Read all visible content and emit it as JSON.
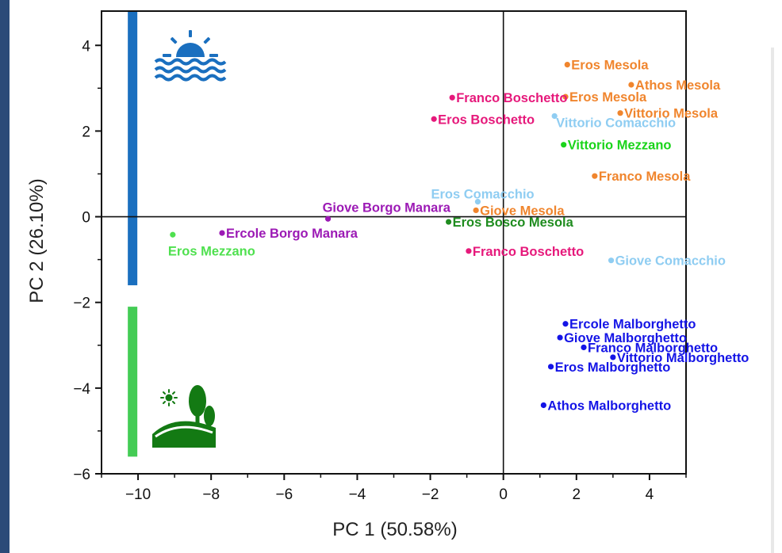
{
  "chart_data": {
    "type": "scatter",
    "title": "",
    "xlabel": "PC 1 (50.58%)",
    "ylabel": "PC 2 (26.10%)",
    "xlim": [
      -11,
      5
    ],
    "ylim": [
      -6,
      4.8
    ],
    "xticks": [
      -10,
      -8,
      -6,
      -4,
      -2,
      0,
      2,
      4
    ],
    "yticks": [
      -6,
      -4,
      -2,
      0,
      2,
      4
    ],
    "xtick_labels": [
      "−10",
      "−8",
      "−6",
      "−4",
      "−2",
      "0",
      "2",
      "4"
    ],
    "ytick_labels": [
      "−6",
      "−4",
      "−2",
      "0",
      "2",
      "4"
    ],
    "grid": false,
    "colors": {
      "orange": "#f0852d",
      "pink": "#e6197b",
      "lightblue": "#8fcdf2",
      "green": "#1ad41a",
      "purple": "#9c1ab5",
      "darkgreen": "#1f8c1f",
      "blue": "#1414e6",
      "lightgreen": "#4fe04f",
      "sea_band": "#1a6fbf",
      "land_band": "#44cc55",
      "sea_icon": "#1a6fbf",
      "land_icon": "#137a13"
    },
    "bands": [
      {
        "name": "sea",
        "color": "sea_band",
        "y": [
          -1.6,
          4.8
        ]
      },
      {
        "name": "land",
        "color": "land_band",
        "y": [
          -5.6,
          -2.1
        ]
      }
    ],
    "icons": [
      "sunset-sea-icon",
      "countryside-hills-icon"
    ],
    "points": [
      {
        "label": "Eros Mesola",
        "x": 1.75,
        "y": 3.55,
        "color": "orange",
        "label_pos": "right"
      },
      {
        "label": "Athos Mesola",
        "x": 3.5,
        "y": 3.08,
        "color": "orange",
        "label_pos": "right"
      },
      {
        "label": "Eros Mesola",
        "x": 1.7,
        "y": 2.8,
        "color": "orange",
        "label_pos": "right"
      },
      {
        "label": "Vittorio Mesola",
        "x": 3.2,
        "y": 2.42,
        "color": "orange",
        "label_pos": "right"
      },
      {
        "label": "Franco Mesola",
        "x": 2.5,
        "y": 0.95,
        "color": "orange",
        "label_pos": "right"
      },
      {
        "label": "Giove Mesola",
        "x": -0.75,
        "y": 0.15,
        "color": "orange",
        "label_pos": "right"
      },
      {
        "label": "Franco Boschetto",
        "x": -1.4,
        "y": 2.78,
        "color": "pink",
        "label_pos": "right"
      },
      {
        "label": "Eros Boschetto",
        "x": -1.9,
        "y": 2.28,
        "color": "pink",
        "label_pos": "right"
      },
      {
        "label": "Franco Boschetto",
        "x": -0.95,
        "y": -0.8,
        "color": "pink",
        "label_pos": "right"
      },
      {
        "label": "Vittorio Comacchio",
        "x": 1.4,
        "y": 2.35,
        "color": "lightblue",
        "label_pos": "right_below"
      },
      {
        "label": "Eros Comacchio",
        "x": -0.7,
        "y": 0.35,
        "color": "lightblue",
        "label_pos": "left_above"
      },
      {
        "label": "Giove Comacchio",
        "x": 2.95,
        "y": -1.02,
        "color": "lightblue",
        "label_pos": "right"
      },
      {
        "label": "Vittorio Mezzano",
        "x": 1.65,
        "y": 1.68,
        "color": "green",
        "label_pos": "right"
      },
      {
        "label": "Eros Mezzano",
        "x": -9.05,
        "y": -0.42,
        "color": "lightgreen",
        "label_pos": "below"
      },
      {
        "label": "Giove Borgo Manara",
        "x": -4.8,
        "y": -0.05,
        "color": "purple",
        "label_pos": "above_right"
      },
      {
        "label": "Ercole Borgo Manara",
        "x": -7.7,
        "y": -0.38,
        "color": "purple",
        "label_pos": "right"
      },
      {
        "label": "Eros Bosco Mesola",
        "x": -1.5,
        "y": -0.12,
        "color": "darkgreen",
        "label_pos": "right"
      },
      {
        "label": "Ercole Malborghetto",
        "x": 1.7,
        "y": -2.5,
        "color": "blue",
        "label_pos": "right"
      },
      {
        "label": "Giove Malborghetto",
        "x": 1.55,
        "y": -2.82,
        "color": "blue",
        "label_pos": "right"
      },
      {
        "label": "Franco Malborghetto",
        "x": 2.2,
        "y": -3.05,
        "color": "blue",
        "label_pos": "right"
      },
      {
        "label": "Vittorio Malborghetto",
        "x": 3.0,
        "y": -3.28,
        "color": "blue",
        "label_pos": "right"
      },
      {
        "label": "Eros Malborghetto",
        "x": 1.3,
        "y": -3.5,
        "color": "blue",
        "label_pos": "right"
      },
      {
        "label": "Athos Malborghetto",
        "x": 1.1,
        "y": -4.4,
        "color": "blue",
        "label_pos": "right"
      }
    ]
  }
}
